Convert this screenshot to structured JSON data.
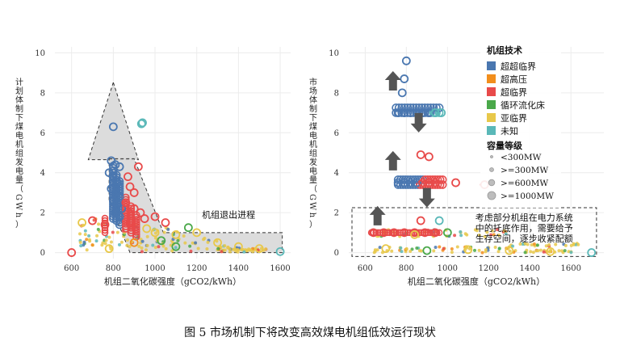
{
  "caption": "图 5 市场机制下将改变高效煤电机组低效运行现状",
  "colors": {
    "超超临界": "#4a77b0",
    "超高压": "#f28e1c",
    "超临界": "#e84a4a",
    "循环流化床": "#4aa84a",
    "亚临界": "#e8c84a",
    "未知": "#5ab8b8"
  },
  "legend": {
    "tech_title": "机组技术",
    "tech_items": [
      "超超临界",
      "超高压",
      "超临界",
      "循环流化床",
      "亚临界",
      "未知"
    ],
    "cap_title": "容量等级",
    "cap_items": [
      "<300MW",
      ">=300MW",
      ">=600MW",
      ">=1000MW"
    ]
  },
  "chart_data": [
    {
      "type": "scatter",
      "xlabel": "机组二氧化碳强度（gCO2/kWh）",
      "ylabel": "计划体制下煤电机组发电量（GWh）",
      "xlim": [
        520,
        1650
      ],
      "ylim": [
        -0.3,
        10.3
      ],
      "xticks": [
        "600",
        "800",
        "1000",
        "1200",
        "1400",
        "1600"
      ],
      "yticks": [
        "0",
        "2",
        "4",
        "6",
        "8",
        "10"
      ],
      "annotation": "机组退出进程",
      "points": [
        {
          "x": 800,
          "y": 6.3,
          "tech": "超超临界"
        },
        {
          "x": 940,
          "y": 6.5,
          "tech": "未知"
        },
        {
          "x": 935,
          "y": 6.45,
          "tech": "未知"
        },
        {
          "x": 790,
          "y": 4.6,
          "tech": "超超临界"
        },
        {
          "x": 810,
          "y": 4.4,
          "tech": "超超临界"
        },
        {
          "x": 830,
          "y": 4.3,
          "tech": "超超临界"
        },
        {
          "x": 780,
          "y": 4.0,
          "tech": "超超临界"
        },
        {
          "x": 800,
          "y": 3.8,
          "tech": "超超临界"
        },
        {
          "x": 820,
          "y": 3.5,
          "tech": "超超临界"
        },
        {
          "x": 790,
          "y": 3.2,
          "tech": "超超临界"
        },
        {
          "x": 810,
          "y": 3.0,
          "tech": "超超临界"
        },
        {
          "x": 830,
          "y": 2.8,
          "tech": "超超临界"
        },
        {
          "x": 800,
          "y": 2.6,
          "tech": "超超临界"
        },
        {
          "x": 820,
          "y": 2.4,
          "tech": "超超临界"
        },
        {
          "x": 840,
          "y": 2.2,
          "tech": "超超临界"
        },
        {
          "x": 810,
          "y": 2.0,
          "tech": "超超临界"
        },
        {
          "x": 830,
          "y": 1.8,
          "tech": "超超临界"
        },
        {
          "x": 920,
          "y": 4.3,
          "tech": "超临界"
        },
        {
          "x": 870,
          "y": 3.8,
          "tech": "超临界"
        },
        {
          "x": 880,
          "y": 3.3,
          "tech": "超临界"
        },
        {
          "x": 900,
          "y": 3.0,
          "tech": "超临界"
        },
        {
          "x": 860,
          "y": 2.5,
          "tech": "超临界"
        },
        {
          "x": 900,
          "y": 2.2,
          "tech": "超临界"
        },
        {
          "x": 930,
          "y": 2.0,
          "tech": "超临界"
        },
        {
          "x": 950,
          "y": 1.7,
          "tech": "超临界"
        },
        {
          "x": 880,
          "y": 1.5,
          "tech": "超临界"
        },
        {
          "x": 1000,
          "y": 1.8,
          "tech": "超临界"
        },
        {
          "x": 1050,
          "y": 1.5,
          "tech": "超临界"
        },
        {
          "x": 700,
          "y": 1.6,
          "tech": "超临界"
        },
        {
          "x": 650,
          "y": 1.5,
          "tech": "亚临界"
        },
        {
          "x": 760,
          "y": 1.4,
          "tech": "超临界"
        },
        {
          "x": 960,
          "y": 1.2,
          "tech": "亚临界"
        },
        {
          "x": 1000,
          "y": 1.0,
          "tech": "亚临界"
        },
        {
          "x": 1100,
          "y": 0.9,
          "tech": "亚临界"
        },
        {
          "x": 1200,
          "y": 1.0,
          "tech": "亚临界"
        },
        {
          "x": 1160,
          "y": 1.25,
          "tech": "循环流化床"
        },
        {
          "x": 1030,
          "y": 0.6,
          "tech": "循环流化床"
        },
        {
          "x": 900,
          "y": 0.5,
          "tech": "超高压"
        },
        {
          "x": 1300,
          "y": 0.5,
          "tech": "亚临界"
        },
        {
          "x": 1400,
          "y": 0.3,
          "tech": "亚临界"
        },
        {
          "x": 1500,
          "y": 0.2,
          "tech": "亚临界"
        },
        {
          "x": 1100,
          "y": 0.3,
          "tech": "循环流化床"
        },
        {
          "x": 600,
          "y": 0.0,
          "tech": "超临界"
        },
        {
          "x": 780,
          "y": 0.2,
          "tech": "亚临界"
        },
        {
          "x": 1600,
          "y": 0.05,
          "tech": "未知"
        }
      ]
    },
    {
      "type": "scatter",
      "xlabel": "机组二氧化碳强度（gCO2/kWh）",
      "ylabel": "市场体制下煤电机组发电量（GWh）",
      "xlim": [
        520,
        1760
      ],
      "ylim": [
        -0.3,
        10.3
      ],
      "xticks": [
        "600",
        "800",
        "1000",
        "1200",
        "1400",
        "1600"
      ],
      "yticks": [
        "0",
        "2",
        "4",
        "6",
        "8",
        "10"
      ],
      "annotation": "考虑部分机组在电力系统中的托底作用，需要给予生存空间，逐步收紧配额",
      "points": [
        {
          "x": 800,
          "y": 9.6,
          "tech": "超超临界"
        },
        {
          "x": 790,
          "y": 8.7,
          "tech": "超超临界"
        },
        {
          "x": 780,
          "y": 8.0,
          "tech": "超超临界"
        },
        {
          "x": 760,
          "y": 7.0,
          "tech": "超超临界"
        },
        {
          "x": 790,
          "y": 7.0,
          "tech": "超超临界"
        },
        {
          "x": 820,
          "y": 7.0,
          "tech": "超超临界"
        },
        {
          "x": 850,
          "y": 7.0,
          "tech": "超超临界"
        },
        {
          "x": 880,
          "y": 7.0,
          "tech": "超超临界"
        },
        {
          "x": 910,
          "y": 7.0,
          "tech": "超超临界"
        },
        {
          "x": 940,
          "y": 7.0,
          "tech": "未知"
        },
        {
          "x": 970,
          "y": 7.0,
          "tech": "未知"
        },
        {
          "x": 760,
          "y": 3.5,
          "tech": "超超临界"
        },
        {
          "x": 790,
          "y": 3.5,
          "tech": "超超临界"
        },
        {
          "x": 820,
          "y": 3.5,
          "tech": "超超临界"
        },
        {
          "x": 850,
          "y": 3.5,
          "tech": "超超临界"
        },
        {
          "x": 880,
          "y": 3.5,
          "tech": "超临界"
        },
        {
          "x": 910,
          "y": 3.5,
          "tech": "超临界"
        },
        {
          "x": 940,
          "y": 3.5,
          "tech": "超临界"
        },
        {
          "x": 870,
          "y": 4.9,
          "tech": "超临界"
        },
        {
          "x": 910,
          "y": 4.8,
          "tech": "超临界"
        },
        {
          "x": 1040,
          "y": 3.5,
          "tech": "超临界"
        },
        {
          "x": 1180,
          "y": 3.4,
          "tech": "超临界"
        },
        {
          "x": 640,
          "y": 1.0,
          "tech": "超临界"
        },
        {
          "x": 690,
          "y": 1.0,
          "tech": "超临界"
        },
        {
          "x": 740,
          "y": 1.0,
          "tech": "超临界"
        },
        {
          "x": 790,
          "y": 1.0,
          "tech": "超临界"
        },
        {
          "x": 840,
          "y": 1.0,
          "tech": "超临界"
        },
        {
          "x": 890,
          "y": 1.0,
          "tech": "超临界"
        },
        {
          "x": 940,
          "y": 1.0,
          "tech": "超临界"
        },
        {
          "x": 870,
          "y": 1.6,
          "tech": "超临界"
        },
        {
          "x": 960,
          "y": 1.6,
          "tech": "未知"
        },
        {
          "x": 1000,
          "y": 1.0,
          "tech": "循环流化床"
        },
        {
          "x": 840,
          "y": 0.9,
          "tech": "亚临界"
        },
        {
          "x": 1100,
          "y": 0.15,
          "tech": "亚临界"
        },
        {
          "x": 1300,
          "y": 0.1,
          "tech": "亚临界"
        },
        {
          "x": 1500,
          "y": 0.05,
          "tech": "亚临界"
        },
        {
          "x": 700,
          "y": 0.2,
          "tech": "亚临界"
        },
        {
          "x": 900,
          "y": 0.1,
          "tech": "循环流化床"
        },
        {
          "x": 1700,
          "y": 0.0,
          "tech": "未知"
        }
      ]
    }
  ]
}
